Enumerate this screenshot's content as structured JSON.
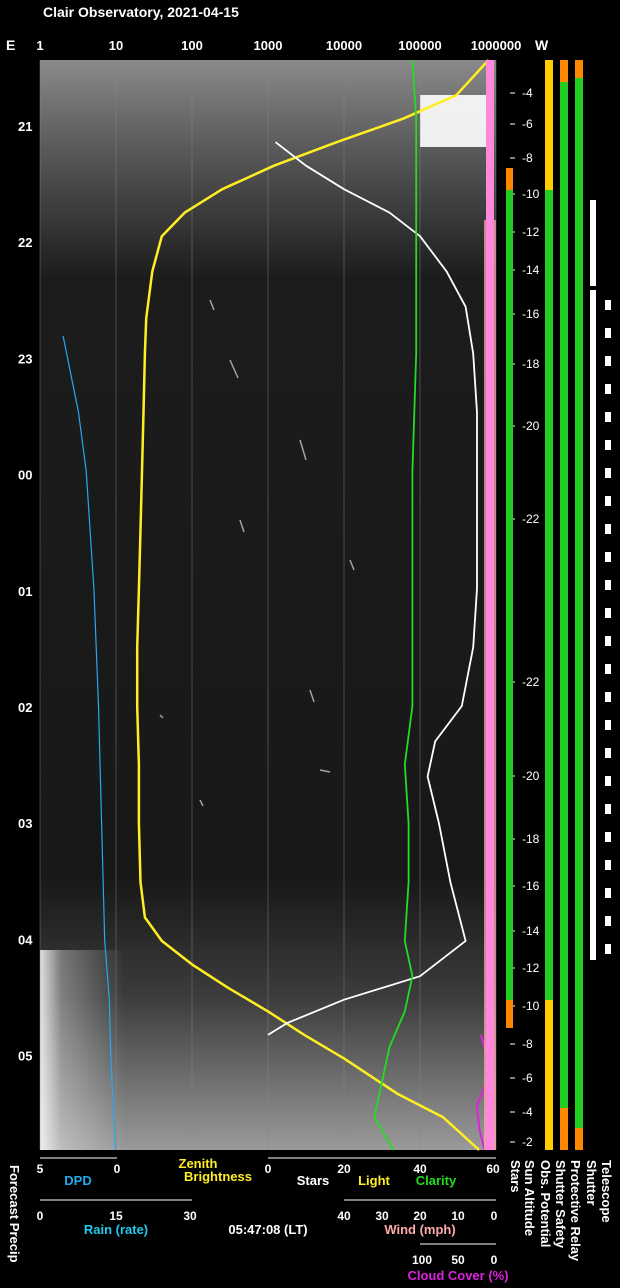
{
  "title": "Clair Observatory, 2021-04-15",
  "time_label": "05:47:08 (LT)",
  "top_axis": {
    "left_letter": "E",
    "right_letter": "W",
    "ticks": [
      "1",
      "10",
      "100",
      "1000",
      "10000",
      "100000",
      "1000000"
    ]
  },
  "hour_ticks": [
    "21",
    "22",
    "23",
    "00",
    "01",
    "02",
    "03",
    "04",
    "05"
  ],
  "sun_altitude_ticks": [
    "-4",
    "-6",
    "-8",
    "-10",
    "-12",
    "-14",
    "-16",
    "-18",
    "-20",
    "-22",
    "-22",
    "-20",
    "-18",
    "-16",
    "-14",
    "-12",
    "-10",
    "-8",
    "-6",
    "-4",
    "-2"
  ],
  "bottom_axes": {
    "row1": {
      "forecast_ticks": [
        "5",
        "0"
      ],
      "dpd_label": "DPD",
      "zenith_label_1": "Zenith",
      "zenith_label_2": "Brightness",
      "main_ticks": [
        "0",
        "20",
        "40",
        "60"
      ],
      "stars_label": "Stars",
      "light_label": "Light",
      "clarity_label": "Clarity"
    },
    "row2": {
      "rain_ticks": [
        "0",
        "15",
        "30"
      ],
      "rain_label": "Rain (rate)",
      "wind_ticks": [
        "40",
        "30",
        "20",
        "10",
        "0"
      ],
      "wind_label": "Wind (mph)"
    },
    "row3": {
      "cloud_ticks": [
        "100",
        "50",
        "0"
      ],
      "cloud_label": "Cloud Cover (%)"
    }
  },
  "side_labels": {
    "forecast_precip": "Forecast Precip",
    "sun_altitude": "Sun Altitude",
    "stars": "Stars",
    "obs_potential": "Obs. Potential",
    "shutter_safety": "Shutter Safety",
    "protective_relay": "Protective Relay",
    "shutter": "Shutter",
    "telescope": "Telescope"
  },
  "colors": {
    "brightness": "#ffee22",
    "stars": "#ffffff",
    "clarity": "#22dd22",
    "dpd": "#22aaee",
    "rain": "#22ccee",
    "wind": "#ffaaaa",
    "cloud": "#dd22dd",
    "status_good": "#22cc22",
    "status_warn": "#ffcc00",
    "status_alert": "#ff8800"
  },
  "chart_data": {
    "type": "line",
    "title": "Clair Observatory, 2021-04-15",
    "x_time_range": [
      "20:30",
      "05:47"
    ],
    "series": [
      {
        "name": "Zenith Brightness",
        "scale": "log",
        "x": [
          20.5,
          20.8,
          21.0,
          21.2,
          21.4,
          21.6,
          21.8,
          22.0,
          22.3,
          22.7,
          23.0,
          23.5,
          24.0,
          24.5,
          25.0,
          25.5,
          26.0,
          26.5,
          27.0,
          27.5,
          27.8,
          28.0,
          28.2,
          28.4,
          28.6,
          28.8,
          29.0,
          29.3,
          29.5,
          29.78
        ],
        "values": [
          800000,
          300000,
          60000,
          8000,
          1200,
          250,
          80,
          40,
          30,
          25,
          24,
          23,
          22,
          21,
          20,
          19,
          19,
          20,
          20,
          21,
          24,
          40,
          100,
          300,
          1000,
          3000,
          10000,
          50000,
          200000,
          600000
        ]
      },
      {
        "name": "Stars",
        "x": [
          21.2,
          21.4,
          21.6,
          21.8,
          22.0,
          22.3,
          22.6,
          23.0,
          23.5,
          24.0,
          24.5,
          25.0,
          25.5,
          26.0,
          26.3,
          26.6,
          27.0,
          27.5,
          28.0,
          28.3,
          28.5,
          28.7,
          28.8
        ],
        "values": [
          2,
          10,
          20,
          32,
          40,
          47,
          52,
          54,
          55,
          55,
          55,
          55,
          54,
          51,
          44,
          42,
          45,
          48,
          52,
          40,
          20,
          5,
          0
        ]
      },
      {
        "name": "Clarity",
        "x": [
          20.5,
          21.0,
          22.0,
          23.0,
          24.0,
          25.0,
          26.0,
          26.5,
          27.0,
          27.5,
          28.0,
          28.3,
          28.6,
          28.9,
          29.2,
          29.5,
          29.78
        ],
        "values": [
          38,
          39,
          39,
          39,
          38,
          38,
          38,
          36,
          37,
          37,
          36,
          38,
          36,
          32,
          30,
          28,
          33
        ]
      },
      {
        "name": "DPD",
        "x": [
          22.85,
          23.5,
          24.0,
          25.0,
          26.0,
          27.0,
          28.0,
          28.5,
          29.0,
          29.78
        ],
        "values": [
          3.5,
          2.5,
          2.0,
          1.5,
          1.2,
          1.0,
          0.8,
          0.5,
          0.4,
          0.1
        ]
      },
      {
        "name": "Cloud Cover (%)",
        "x": [
          28.8,
          29.0,
          29.2,
          29.4,
          29.6,
          29.78
        ],
        "values": [
          20,
          10,
          12,
          25,
          22,
          15
        ]
      }
    ]
  }
}
